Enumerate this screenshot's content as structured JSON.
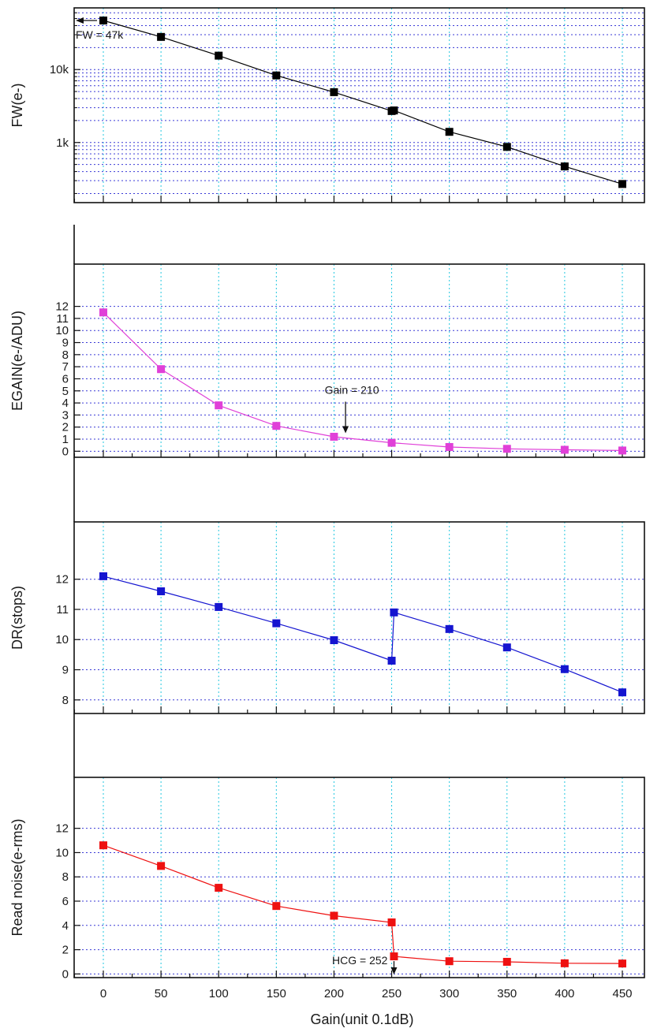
{
  "figure": {
    "xlabel": "Gain(unit 0.1dB)",
    "x_ticks": [
      0,
      50,
      100,
      150,
      200,
      250,
      300,
      350,
      400,
      450
    ],
    "x_tick_labels": [
      "0",
      "50",
      "100",
      "150",
      "200",
      "250",
      "300",
      "350",
      "400",
      "450"
    ]
  },
  "chart_data": [
    {
      "type": "line",
      "ylabel": "FW(e-)",
      "yscale": "log",
      "ylim": [
        150,
        70000
      ],
      "y_ticks": [
        1000,
        10000
      ],
      "y_tick_labels": [
        "1k",
        "10k"
      ],
      "grid": true,
      "color": "#000000",
      "series": [
        {
          "x": [
            0,
            50,
            100,
            150,
            200,
            250,
            252,
            300,
            350,
            400,
            450
          ],
          "y": [
            47000,
            28000,
            15500,
            8300,
            4900,
            2700,
            2750,
            1400,
            870,
            470,
            270
          ]
        }
      ],
      "annotations": [
        {
          "text": "FW = 47k",
          "x": 0,
          "y": 47000,
          "arrow": "left"
        }
      ]
    },
    {
      "type": "line",
      "ylabel": "EGAIN(e-/ADU)",
      "yscale": "linear",
      "ylim": [
        -0.5,
        15.5
      ],
      "y_ticks": [
        0,
        1,
        2,
        3,
        4,
        5,
        6,
        7,
        8,
        9,
        10,
        11,
        12
      ],
      "y_tick_labels": [
        "0",
        "1",
        "2",
        "3",
        "4",
        "5",
        "6",
        "7",
        "8",
        "9",
        "10",
        "11",
        "12"
      ],
      "grid": true,
      "color": "#e040d8",
      "series": [
        {
          "x": [
            0,
            50,
            100,
            150,
            200,
            250,
            300,
            350,
            400,
            450
          ],
          "y": [
            11.5,
            6.8,
            3.8,
            2.1,
            1.2,
            0.7,
            0.35,
            0.2,
            0.12,
            0.06
          ]
        }
      ],
      "annotations": [
        {
          "text": "Gain = 210",
          "x": 210,
          "y": 1.1,
          "arrow": "down"
        }
      ]
    },
    {
      "type": "line",
      "ylabel": "DR(stops)",
      "yscale": "linear",
      "ylim": [
        7.55,
        13.9
      ],
      "y_ticks": [
        8,
        9,
        10,
        11,
        12
      ],
      "y_tick_labels": [
        "8",
        "9",
        "10",
        "11",
        "12"
      ],
      "grid": true,
      "color": "#1515d0",
      "series": [
        {
          "x": [
            0,
            50,
            100,
            150,
            200,
            250,
            252,
            300,
            350,
            400,
            450
          ],
          "y": [
            12.1,
            11.6,
            11.08,
            10.54,
            9.98,
            9.3,
            10.9,
            10.35,
            9.74,
            9.02,
            8.25
          ]
        }
      ]
    },
    {
      "type": "line",
      "ylabel": "Read noise(e-rms)",
      "yscale": "linear",
      "ylim": [
        -0.3,
        16.2
      ],
      "y_ticks": [
        0,
        2,
        4,
        6,
        8,
        10,
        12
      ],
      "y_tick_labels": [
        "0",
        "2",
        "4",
        "6",
        "8",
        "10",
        "12"
      ],
      "grid": true,
      "color": "#ee1111",
      "series": [
        {
          "x": [
            0,
            50,
            100,
            150,
            200,
            250,
            252,
            300,
            350,
            400,
            450
          ],
          "y": [
            10.6,
            8.9,
            7.1,
            5.6,
            4.8,
            4.25,
            1.45,
            1.05,
            1.0,
            0.88,
            0.86
          ]
        }
      ],
      "annotations": [
        {
          "text": "HCG = 252",
          "x": 252,
          "y": 1.45,
          "arrow": "down"
        }
      ]
    }
  ]
}
